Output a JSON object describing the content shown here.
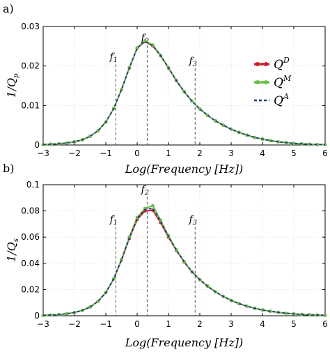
{
  "chart_data": [
    {
      "type": "line",
      "panel_label": "a)",
      "xlabel": "Log(Frequency [Hz])",
      "ylabel": "1/Q_p",
      "ylabel_main": "1/Q",
      "ylabel_sub": "p",
      "xlim": [
        -3,
        6
      ],
      "ylim": [
        0,
        0.03
      ],
      "xticks": [
        -3,
        -2,
        -1,
        0,
        1,
        2,
        3,
        4,
        5,
        6
      ],
      "yticks": [
        0,
        0.01,
        0.02,
        0.03
      ],
      "ytick_labels": [
        "0",
        "0.01",
        "0.02",
        "0.03"
      ],
      "grid": true,
      "legend_position": "top-right",
      "x": [
        -3,
        -2.75,
        -2.5,
        -2.25,
        -2,
        -1.75,
        -1.5,
        -1.25,
        -1,
        -0.75,
        -0.5,
        -0.25,
        0,
        0.25,
        0.5,
        0.75,
        1,
        1.25,
        1.5,
        1.75,
        2,
        2.25,
        2.5,
        2.75,
        3,
        3.25,
        3.5,
        3.75,
        4,
        4.25,
        4.5,
        4.75,
        5,
        5.25,
        5.5,
        5.75,
        6
      ],
      "series": [
        {
          "name": "Q^D",
          "color": "#cc2229",
          "style": "solid-markers",
          "values": [
            0.0001,
            0.0002,
            0.0003,
            0.0005,
            0.0008,
            0.0013,
            0.0022,
            0.0036,
            0.0058,
            0.0092,
            0.014,
            0.0195,
            0.0245,
            0.0262,
            0.0251,
            0.0226,
            0.0195,
            0.0163,
            0.0135,
            0.0111,
            0.0091,
            0.0075,
            0.0061,
            0.005,
            0.004,
            0.0032,
            0.0025,
            0.0019,
            0.0015,
            0.0011,
            0.0008,
            0.0006,
            0.0004,
            0.0003,
            0.0002,
            0.0001,
            0.0001
          ]
        },
        {
          "name": "Q^M",
          "color": "#6abf4b",
          "style": "solid-markers",
          "values": [
            0.0001,
            0.0002,
            0.0003,
            0.0005,
            0.0008,
            0.0013,
            0.0022,
            0.0036,
            0.0058,
            0.0092,
            0.014,
            0.0196,
            0.0246,
            0.0264,
            0.0253,
            0.0227,
            0.0196,
            0.0164,
            0.0135,
            0.0111,
            0.0091,
            0.0075,
            0.0061,
            0.005,
            0.004,
            0.0032,
            0.0025,
            0.0019,
            0.0015,
            0.0011,
            0.0008,
            0.0006,
            0.0004,
            0.0003,
            0.0002,
            0.0001,
            0.0001
          ]
        },
        {
          "name": "Q^A",
          "color": "#1f3a7a",
          "style": "dashed",
          "values": [
            0.0001,
            0.0002,
            0.0003,
            0.0005,
            0.0008,
            0.0013,
            0.0022,
            0.0036,
            0.0058,
            0.0092,
            0.014,
            0.0195,
            0.0245,
            0.0262,
            0.0251,
            0.0226,
            0.0195,
            0.0163,
            0.0135,
            0.0111,
            0.0091,
            0.0075,
            0.0061,
            0.005,
            0.004,
            0.0032,
            0.0025,
            0.0019,
            0.0015,
            0.0011,
            0.0008,
            0.0006,
            0.0004,
            0.0003,
            0.0002,
            0.0001,
            0.0001
          ]
        }
      ],
      "legend_entries": [
        {
          "base": "Q",
          "sup": "D",
          "color": "#cc2229",
          "style": "solid-markers"
        },
        {
          "base": "Q",
          "sup": "M",
          "color": "#6abf4b",
          "style": "solid-markers"
        },
        {
          "base": "Q",
          "sup": "A",
          "color": "#1f3a7a",
          "style": "dashed"
        }
      ],
      "vlines": [
        {
          "label": "f",
          "sub": "1",
          "x": -0.68,
          "label_y": 0.0215
        },
        {
          "label": "f",
          "sub": "2",
          "x": 0.32,
          "label_y": 0.0263
        },
        {
          "label": "f",
          "sub": "3",
          "x": 1.85,
          "label_y": 0.0205
        }
      ]
    },
    {
      "type": "line",
      "panel_label": "b)",
      "xlabel": "Log(Frequency [Hz])",
      "ylabel": "1/Q_s",
      "ylabel_main": "1/Q",
      "ylabel_sub": "s",
      "xlim": [
        -3,
        6
      ],
      "ylim": [
        0,
        0.1
      ],
      "xticks": [
        -3,
        -2,
        -1,
        0,
        1,
        2,
        3,
        4,
        5,
        6
      ],
      "yticks": [
        0,
        0.02,
        0.04,
        0.06,
        0.08,
        0.1
      ],
      "ytick_labels": [
        "0",
        "0.02",
        "0.04",
        "0.06",
        "0.08",
        "0.1"
      ],
      "grid": true,
      "x": [
        -3,
        -2.75,
        -2.5,
        -2.25,
        -2,
        -1.75,
        -1.5,
        -1.25,
        -1,
        -0.75,
        -0.5,
        -0.25,
        0,
        0.25,
        0.5,
        0.75,
        1,
        1.25,
        1.5,
        1.75,
        2,
        2.25,
        2.5,
        2.75,
        3,
        3.25,
        3.5,
        3.75,
        4,
        4.25,
        4.5,
        4.75,
        5,
        5.25,
        5.5,
        5.75,
        6
      ],
      "series": [
        {
          "name": "Q^D",
          "color": "#cc2229",
          "style": "solid-markers",
          "values": [
            0.0003,
            0.0005,
            0.0009,
            0.0015,
            0.0025,
            0.0041,
            0.0067,
            0.011,
            0.0177,
            0.028,
            0.0425,
            0.059,
            0.0735,
            0.08,
            0.0805,
            0.071,
            0.06,
            0.05,
            0.041,
            0.0335,
            0.0275,
            0.0225,
            0.0182,
            0.0147,
            0.0117,
            0.0093,
            0.0073,
            0.0057,
            0.0044,
            0.0034,
            0.0026,
            0.0019,
            0.0014,
            0.001,
            0.0007,
            0.0005,
            0.0003
          ]
        },
        {
          "name": "Q^M",
          "color": "#6abf4b",
          "style": "solid-markers",
          "values": [
            0.0003,
            0.0005,
            0.0009,
            0.0015,
            0.0025,
            0.0041,
            0.0067,
            0.011,
            0.0178,
            0.0282,
            0.043,
            0.06,
            0.075,
            0.082,
            0.084,
            0.073,
            0.061,
            0.0505,
            0.0413,
            0.0337,
            0.0276,
            0.0226,
            0.0183,
            0.0148,
            0.0118,
            0.0094,
            0.0074,
            0.0058,
            0.0045,
            0.0034,
            0.0026,
            0.0019,
            0.0014,
            0.001,
            0.0007,
            0.0005,
            0.0003
          ]
        },
        {
          "name": "Q^A",
          "color": "#1f3a7a",
          "style": "dashed",
          "values": [
            0.0003,
            0.0005,
            0.0009,
            0.0015,
            0.0025,
            0.0041,
            0.0067,
            0.011,
            0.0177,
            0.0281,
            0.0428,
            0.0595,
            0.0742,
            0.081,
            0.082,
            0.072,
            0.0605,
            0.0502,
            0.0412,
            0.0336,
            0.0275,
            0.0225,
            0.0182,
            0.0147,
            0.0117,
            0.0093,
            0.0073,
            0.0057,
            0.0044,
            0.0034,
            0.0026,
            0.0019,
            0.0014,
            0.001,
            0.0007,
            0.0005,
            0.0003
          ]
        }
      ],
      "vlines": [
        {
          "label": "f",
          "sub": "1",
          "x": -0.68,
          "label_y": 0.071
        },
        {
          "label": "f",
          "sub": "2",
          "x": 0.32,
          "label_y": 0.094
        },
        {
          "label": "f",
          "sub": "3",
          "x": 1.85,
          "label_y": 0.071
        }
      ]
    }
  ]
}
